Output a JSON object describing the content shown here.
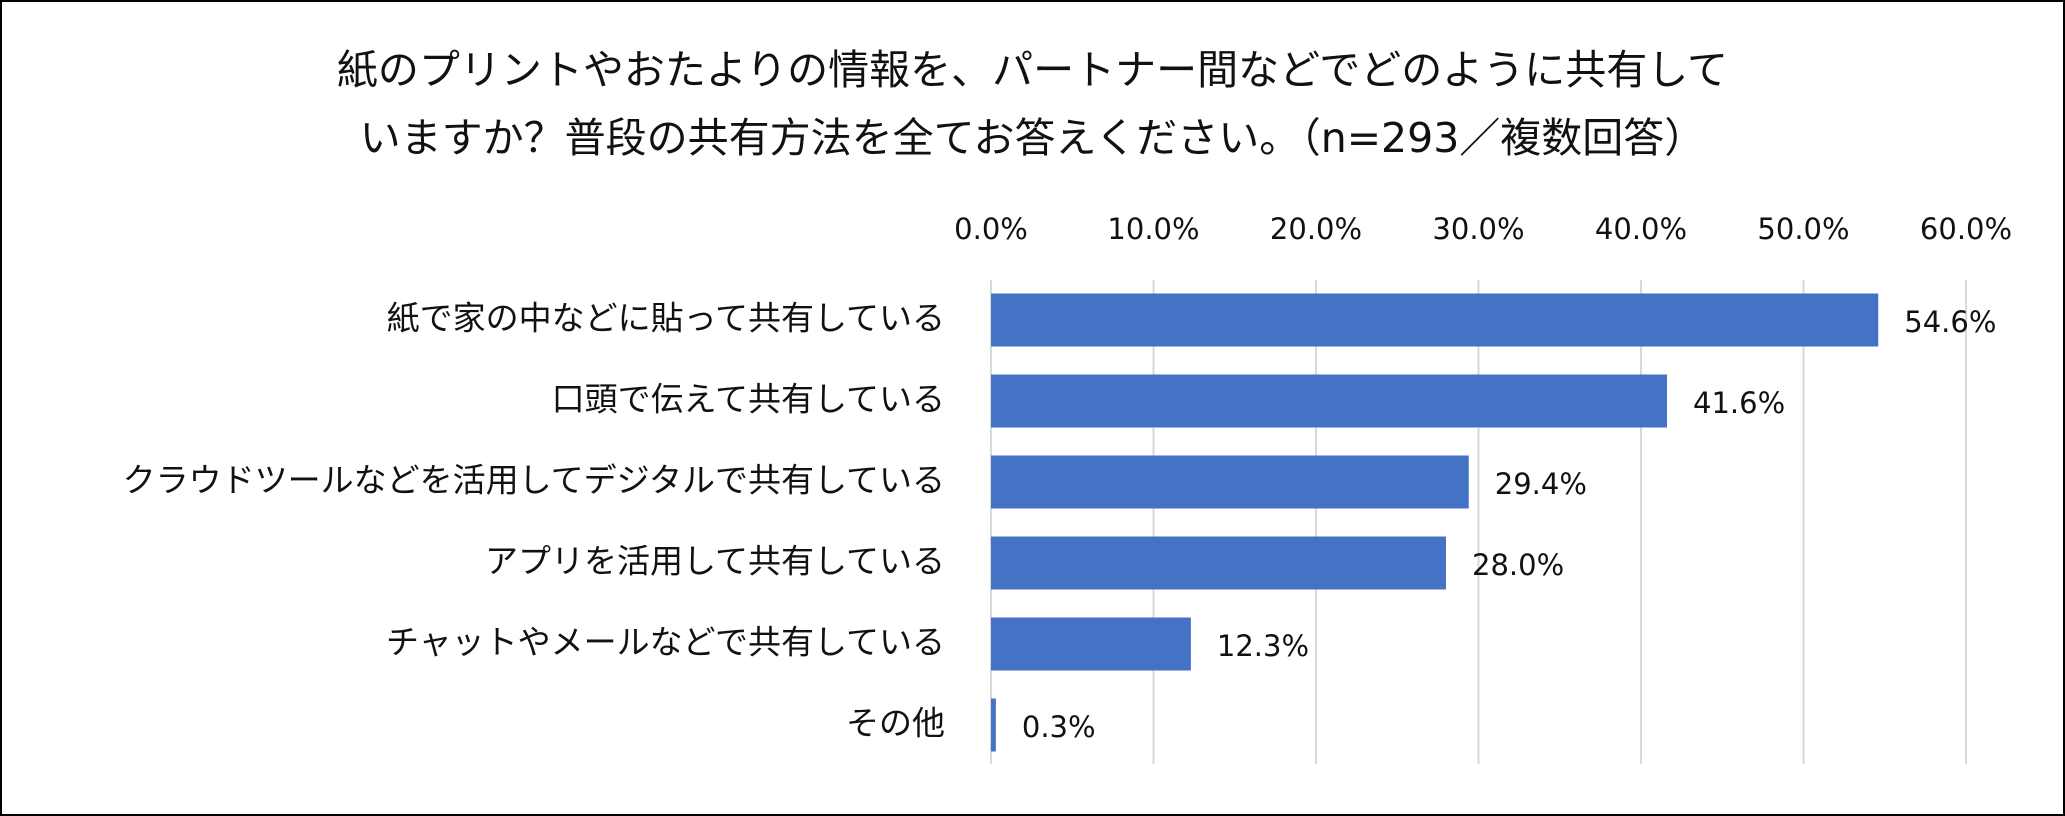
{
  "chart_data": {
    "type": "bar",
    "orientation": "horizontal",
    "title_lines": [
      "紙のプリントやおたよりの情報を、パートナー間などでどのように共有して",
      "いますか？普段の共有方法を全てお答えください。（n=293／複数回答）"
    ],
    "categories": [
      "紙で家の中などに貼って共有している",
      "口頭で伝えて共有している",
      "クラウドツールなどを活用してデジタルで共有している",
      "アプリを活用して共有している",
      "チャットやメールなどで共有している",
      "その他"
    ],
    "values": [
      54.6,
      41.6,
      29.4,
      28.0,
      12.3,
      0.3
    ],
    "data_labels": [
      "54.6%",
      "41.6%",
      "29.4%",
      "28.0%",
      "12.3%",
      "0.3%"
    ],
    "xlim": [
      0,
      60
    ],
    "ticks": [
      0,
      10,
      20,
      30,
      40,
      50,
      60
    ],
    "tick_labels": [
      "0.0%",
      "10.0%",
      "20.0%",
      "30.0%",
      "40.0%",
      "50.0%",
      "60.0%"
    ],
    "axis_position": "top",
    "grid": true,
    "legend": "none",
    "bar_color": "#4472C4",
    "grid_color": "#D9D9D9"
  }
}
